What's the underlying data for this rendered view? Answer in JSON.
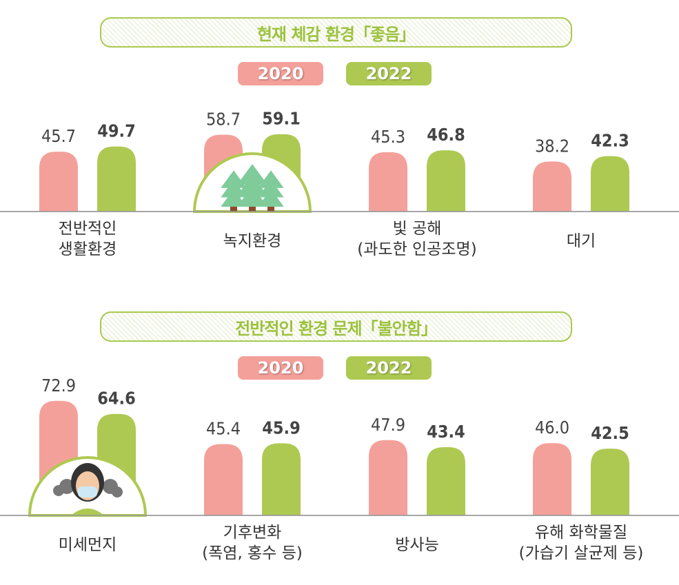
{
  "colors": {
    "y2020": "#f4a09a",
    "y2022": "#aec952",
    "axis": "#9a9a9a",
    "title": "#9cc13c"
  },
  "chart_data": [
    {
      "type": "bar",
      "title": "현재 체감 환경「좋음」",
      "legend": [
        "2020",
        "2022"
      ],
      "legend_position": "top",
      "categories": [
        [
          "전반적인",
          "생활환경"
        ],
        [
          "녹지환경"
        ],
        [
          "빛 공해",
          "(과도한 인공조명)"
        ],
        [
          "대기"
        ]
      ],
      "series": [
        {
          "name": "2020",
          "values": [
            45.7,
            58.7,
            45.3,
            38.2
          ],
          "labels": [
            "45.7",
            "58.7",
            "45.3",
            "38.2"
          ]
        },
        {
          "name": "2022",
          "values": [
            49.7,
            59.1,
            46.8,
            42.3
          ],
          "labels": [
            "49.7",
            "59.1",
            "46.8",
            "42.3"
          ]
        }
      ],
      "icon": "forest-trees-icon"
    },
    {
      "type": "bar",
      "title": "전반적인 환경 문제「불안함」",
      "legend": [
        "2020",
        "2022"
      ],
      "legend_position": "top",
      "categories": [
        [
          "미세먼지"
        ],
        [
          "기후변화",
          "(폭염, 홍수 등)"
        ],
        [
          "방사능"
        ],
        [
          "유해 화학물질",
          "(가습기 살균제 등)"
        ]
      ],
      "series": [
        {
          "name": "2020",
          "values": [
            72.9,
            45.4,
            47.9,
            46.0
          ],
          "labels": [
            "72.9",
            "45.4",
            "47.9",
            "46.0"
          ]
        },
        {
          "name": "2022",
          "values": [
            64.6,
            45.9,
            43.4,
            42.5
          ],
          "labels": [
            "64.6",
            "45.9",
            "43.4",
            "42.5"
          ]
        }
      ],
      "icon": "person-mask-dust-icon"
    }
  ]
}
